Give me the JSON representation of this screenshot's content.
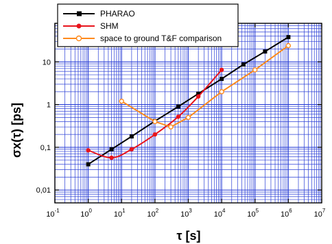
{
  "chart_data": {
    "type": "line",
    "xlabel": "τ [s]",
    "ylabel": "σx(τ)  [ps]",
    "xscale": "log",
    "yscale": "log",
    "xlim": [
      0.1,
      10000000
    ],
    "ylim": [
      0.005,
      80
    ],
    "grid": true,
    "legend_position": "top-left",
    "x_tick_labels": [
      {
        "base": "10",
        "exp": "-1"
      },
      {
        "base": "10",
        "exp": "0"
      },
      {
        "base": "10",
        "exp": "1"
      },
      {
        "base": "10",
        "exp": "2"
      },
      {
        "base": "10",
        "exp": "3"
      },
      {
        "base": "10",
        "exp": "4"
      },
      {
        "base": "10",
        "exp": "5"
      },
      {
        "base": "10",
        "exp": "6"
      },
      {
        "base": "10",
        "exp": "7"
      }
    ],
    "y_tick_labels": [
      "0,01",
      "0,1",
      "1",
      "10"
    ],
    "y_tick_values": [
      0.01,
      0.1,
      1,
      10
    ],
    "series": [
      {
        "name": "PHARAO",
        "color": "#000000",
        "marker": "square",
        "x": [
          1,
          5,
          20,
          100,
          500,
          2000,
          10000,
          45000,
          200000,
          1000000
        ],
        "y": [
          0.04,
          0.09,
          0.18,
          0.41,
          0.9,
          1.8,
          4,
          8.7,
          17.5,
          38
        ]
      },
      {
        "name": "SHM",
        "color": "#e8141c",
        "marker": "circle",
        "x": [
          1,
          5,
          20,
          100,
          500,
          2000,
          10000
        ],
        "y": [
          0.085,
          0.057,
          0.09,
          0.2,
          0.52,
          1.55,
          6.5
        ]
      },
      {
        "name": "space to ground T&F comparison",
        "color": "#ff8a1c",
        "marker": "open-circle",
        "x": [
          10,
          100,
          300,
          1000,
          10000,
          100000,
          1000000
        ],
        "y": [
          1.2,
          0.4,
          0.3,
          0.5,
          2.0,
          6.5,
          24
        ]
      }
    ]
  }
}
